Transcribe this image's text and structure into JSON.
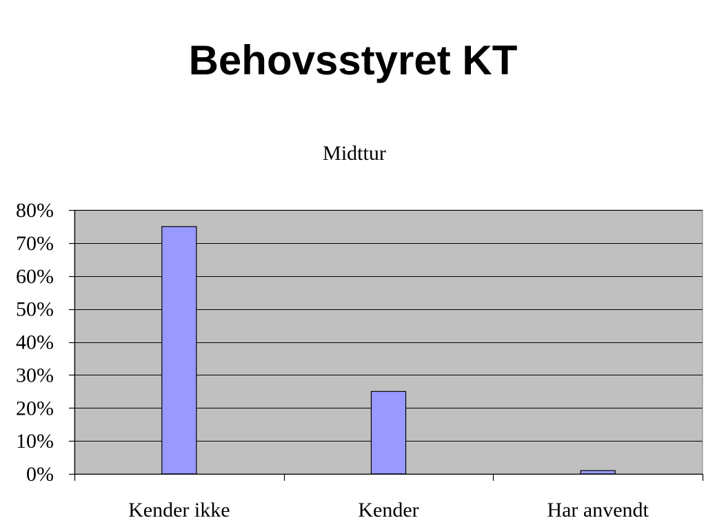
{
  "slide": {
    "title": "Behovsstyret KT"
  },
  "chart_data": {
    "type": "bar",
    "title": "Midttur",
    "categories": [
      "Kender ikke",
      "Kender",
      "Har anvendt"
    ],
    "values": [
      75,
      25,
      1
    ],
    "value_format": "percent",
    "ylim": [
      0,
      80
    ],
    "yticks": [
      0,
      10,
      20,
      30,
      40,
      50,
      60,
      70,
      80
    ],
    "ytick_labels": [
      "0%",
      "10%",
      "20%",
      "30%",
      "40%",
      "50%",
      "60%",
      "70%",
      "80%"
    ],
    "xlabel": "",
    "ylabel": "",
    "grid": true,
    "legend": false,
    "colors": {
      "bar_fill": "#9999ff",
      "bar_stroke": "#000000",
      "plot_background": "#c0c0c0",
      "gridline": "#000000",
      "axis": "#000000"
    }
  }
}
